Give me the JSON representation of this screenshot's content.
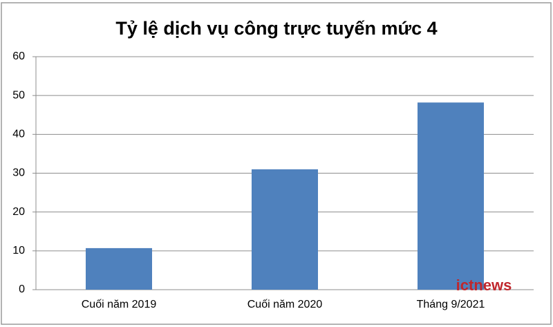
{
  "chart_data": {
    "type": "bar",
    "title": "Tỷ lệ dịch vụ công trực tuyến mức 4",
    "categories": [
      "Cuối năm 2019",
      "Cuối năm 2020",
      "Tháng 9/2021"
    ],
    "values": [
      10.7,
      31,
      48.2
    ],
    "color": "#4f81bd",
    "ylim": [
      0,
      60
    ],
    "yticks": [
      0,
      10,
      20,
      30,
      40,
      50,
      60
    ],
    "grid": true,
    "watermark": "ictnews"
  }
}
